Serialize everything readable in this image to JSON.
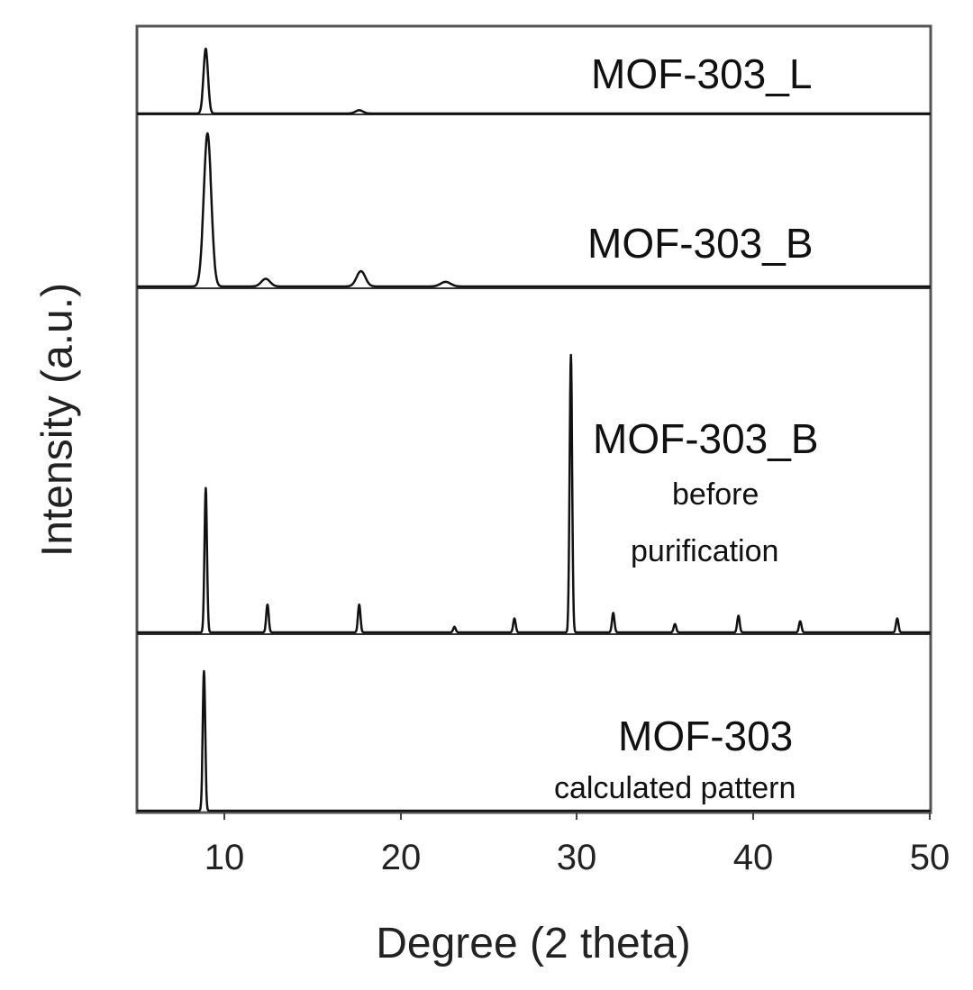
{
  "chart_data": {
    "type": "line",
    "title": "",
    "xlabel": "Degree (2 theta)",
    "ylabel": "Intensity (a.u.)",
    "xlim": [
      5,
      50
    ],
    "xticks": [
      10,
      20,
      30,
      40,
      50
    ],
    "grid": false,
    "layout": "stacked panels, top to bottom",
    "series": [
      {
        "name": "MOF-303_L",
        "sublabel": "",
        "peaks": [
          {
            "x": 8.9,
            "y": 100
          },
          {
            "x": 17.6,
            "y": 5
          }
        ]
      },
      {
        "name": "MOF-303_B",
        "sublabel": "",
        "peaks": [
          {
            "x": 9.0,
            "y": 100
          },
          {
            "x": 12.3,
            "y": 5
          },
          {
            "x": 17.7,
            "y": 10
          },
          {
            "x": 22.5,
            "y": 3
          }
        ]
      },
      {
        "name": "MOF-303_B",
        "sublabel": "before purification",
        "peaks": [
          {
            "x": 8.9,
            "y": 52
          },
          {
            "x": 12.4,
            "y": 10
          },
          {
            "x": 17.6,
            "y": 10
          },
          {
            "x": 23.0,
            "y": 2
          },
          {
            "x": 26.4,
            "y": 5
          },
          {
            "x": 29.6,
            "y": 100
          },
          {
            "x": 32.0,
            "y": 7
          },
          {
            "x": 35.5,
            "y": 3
          },
          {
            "x": 39.1,
            "y": 6
          },
          {
            "x": 42.6,
            "y": 4
          },
          {
            "x": 48.1,
            "y": 5
          }
        ]
      },
      {
        "name": "MOF-303",
        "sublabel": "calculated pattern",
        "peaks": [
          {
            "x": 8.8,
            "y": 100
          }
        ]
      }
    ]
  },
  "labels": {
    "p1": "MOF-303_L",
    "p2": "MOF-303_B",
    "p3": "MOF-303_B",
    "p3sub1": "before",
    "p3sub2": "purification",
    "p4": "MOF-303",
    "p4sub": "calculated pattern",
    "xlabel": "Degree (2 theta)",
    "ylabel": "Intensity (a.u.)",
    "ticks": [
      "10",
      "20",
      "30",
      "40",
      "50"
    ]
  }
}
